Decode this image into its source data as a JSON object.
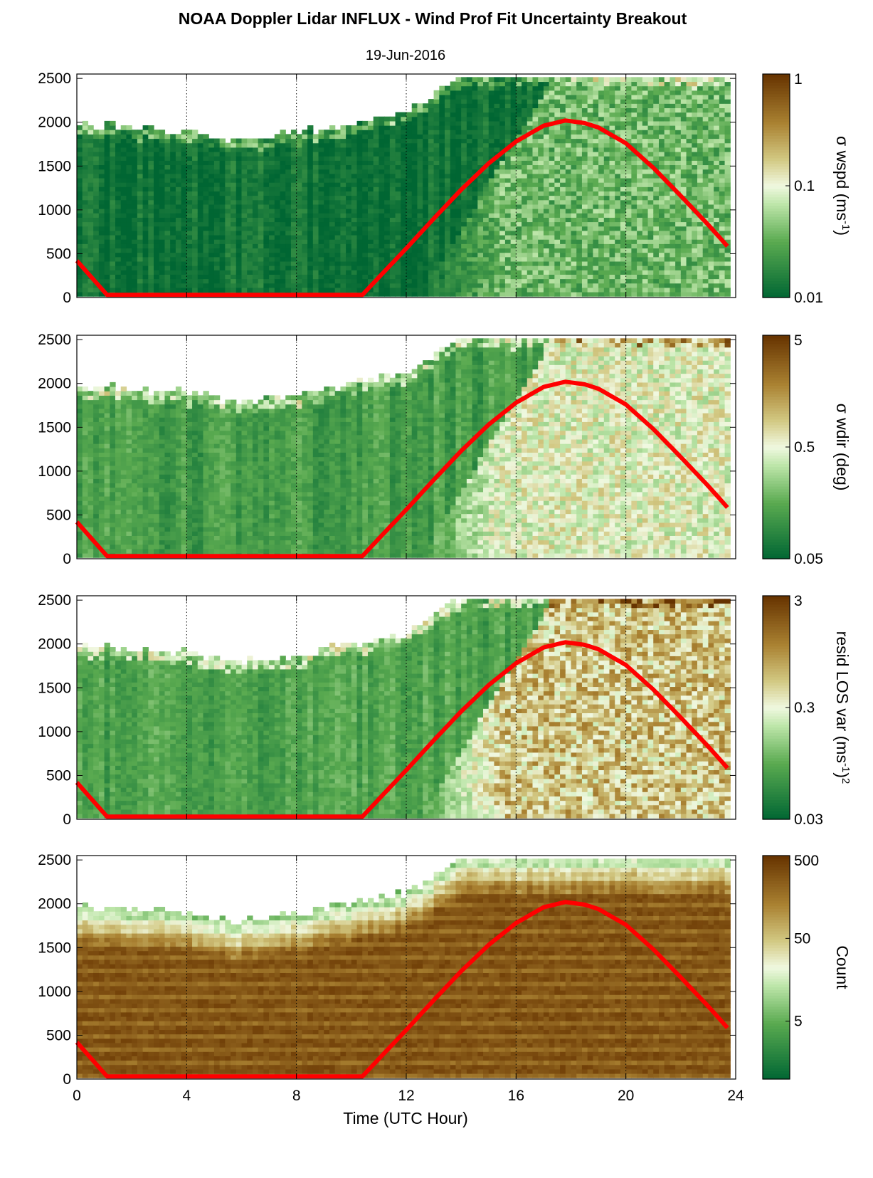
{
  "figure": {
    "title": "NOAA Doppler Lidar INFLUX - Wind Prof Fit Uncertainty Breakout",
    "date": "19-Jun-2016",
    "xlabel": "Time (UTC Hour)"
  },
  "chart_data": [
    {
      "type": "heatmap",
      "colorbar_label": "σ wspd (ms<sup>-1</sup>)",
      "colorbar_ticks": [
        "1",
        "0.1",
        "0.01"
      ],
      "colorbar_scale": "log",
      "colorbar_range": [
        0.01,
        1
      ],
      "x_range": [
        0,
        24
      ],
      "y_range": [
        0,
        2550
      ],
      "x_ticks": [
        "0",
        "4",
        "8",
        "12",
        "16",
        "20",
        "24"
      ],
      "y_ticks": [
        "0",
        "500",
        "1000",
        "1500",
        "2000",
        "2500"
      ],
      "background_level": 0.05,
      "unstable_level": 0.28,
      "unstable_amp": 0.14,
      "red_curve": "solar elevation",
      "color_scheme": "green-brown"
    },
    {
      "type": "heatmap",
      "colorbar_label": "σ wdir (deg)",
      "colorbar_ticks": [
        "5",
        "0.5",
        "0.05"
      ],
      "colorbar_scale": "log",
      "colorbar_range": [
        0.05,
        5
      ],
      "x_range": [
        0,
        24
      ],
      "y_range": [
        0,
        2550
      ],
      "x_ticks": [
        "0",
        "4",
        "8",
        "12",
        "16",
        "20",
        "24"
      ],
      "y_ticks": [
        "0",
        "500",
        "1000",
        "1500",
        "2000",
        "2500"
      ],
      "background_level": 0.2,
      "unstable_level": 0.5,
      "unstable_amp": 0.14,
      "red_curve": "solar elevation",
      "color_scheme": "green-brown"
    },
    {
      "type": "heatmap",
      "colorbar_label": "resid LOS var (ms<sup>-1</sup>)<sup>2</sup>",
      "colorbar_ticks": [
        "3",
        "0.3",
        "0.03"
      ],
      "colorbar_scale": "log",
      "colorbar_range": [
        0.03,
        3
      ],
      "x_range": [
        0,
        24
      ],
      "y_range": [
        0,
        2550
      ],
      "x_ticks": [
        "0",
        "4",
        "8",
        "12",
        "16",
        "20",
        "24"
      ],
      "y_ticks": [
        "0",
        "500",
        "1000",
        "1500",
        "2000",
        "2500"
      ],
      "background_level": 0.22,
      "unstable_level": 0.62,
      "unstable_amp": 0.18,
      "red_curve": "solar elevation",
      "color_scheme": "green-brown"
    },
    {
      "type": "heatmap",
      "colorbar_label": "Count",
      "colorbar_ticks": [
        "500",
        "50",
        "5"
      ],
      "colorbar_scale": "log",
      "colorbar_range": [
        1,
        500
      ],
      "x_range": [
        0,
        24
      ],
      "y_range": [
        0,
        2550
      ],
      "x_ticks": [
        "0",
        "4",
        "8",
        "12",
        "16",
        "20",
        "24"
      ],
      "y_ticks": [
        "0",
        "500",
        "1000",
        "1500",
        "2000",
        "2500"
      ],
      "background_level": 0.92,
      "unstable_level": 0.92,
      "unstable_amp": 0.05,
      "red_curve": "solar elevation",
      "color_scheme": "green-brown"
    }
  ],
  "solar_curve": {
    "x": [
      0,
      1.1,
      10.4,
      11,
      12,
      13,
      14,
      15,
      16,
      17,
      17.8,
      18.5,
      19,
      20,
      21,
      22,
      23,
      23.8
    ],
    "y": [
      420,
      30,
      30,
      230,
      560,
      900,
      1230,
      1530,
      1780,
      1960,
      2020,
      1990,
      1940,
      1760,
      1480,
      1160,
      830,
      550
    ]
  },
  "colors": {
    "dark_green": "#006633",
    "light": "#f0f8e0",
    "dark_brown": "#663300",
    "red_line": "#ff0000"
  }
}
